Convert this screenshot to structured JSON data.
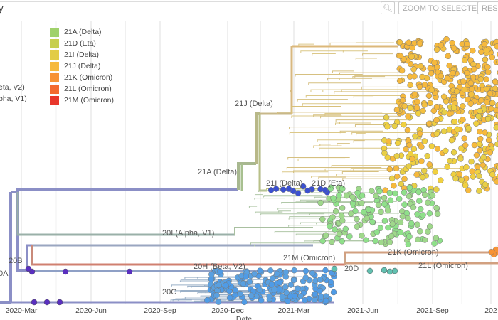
{
  "header": {
    "title_fragment": "y",
    "zoom_icon": "zoom-out-icon",
    "zoom_selected": "ZOOM TO SELECTED",
    "reset": "RESE"
  },
  "legend": [
    {
      "label": "21A (Delta)",
      "color": "#9fd16b"
    },
    {
      "label": "21D (Eta)",
      "color": "#c7cf4f"
    },
    {
      "label": "21I (Delta)",
      "color": "#e2cc46"
    },
    {
      "label": "21J (Delta)",
      "color": "#f6b93d"
    },
    {
      "label": "21K (Omicron)",
      "color": "#f79335"
    },
    {
      "label": "21L (Omicron)",
      "color": "#f36a2f"
    },
    {
      "label": "21M (Omicron)",
      "color": "#e8362b"
    }
  ],
  "left_labels": [
    "eta, V2)",
    "pha, V1)"
  ],
  "clades": {
    "c21J": "21J (Delta)",
    "c21A": "21A (Delta)",
    "c21I": "21I (Delta)",
    "c21D": "21D (Eta)",
    "c20I": "20I (Alpha, V1)",
    "c21M": "21M (Omicron)",
    "c20B": "20B",
    "c20D": "20D",
    "c20H": "20H (Beta, V2)",
    "c21K": "21K (Omicron)",
    "c21L": "21L (Omicron)",
    "c20A": "0A",
    "c20C": "20C"
  },
  "axis": {
    "ticks": [
      "2020-Mar",
      "2020-Jun",
      "2020-Sep",
      "2020-Dec",
      "2021-Mar",
      "2021-Jun",
      "2021-Sep",
      "202"
    ],
    "label": "Date"
  }
}
